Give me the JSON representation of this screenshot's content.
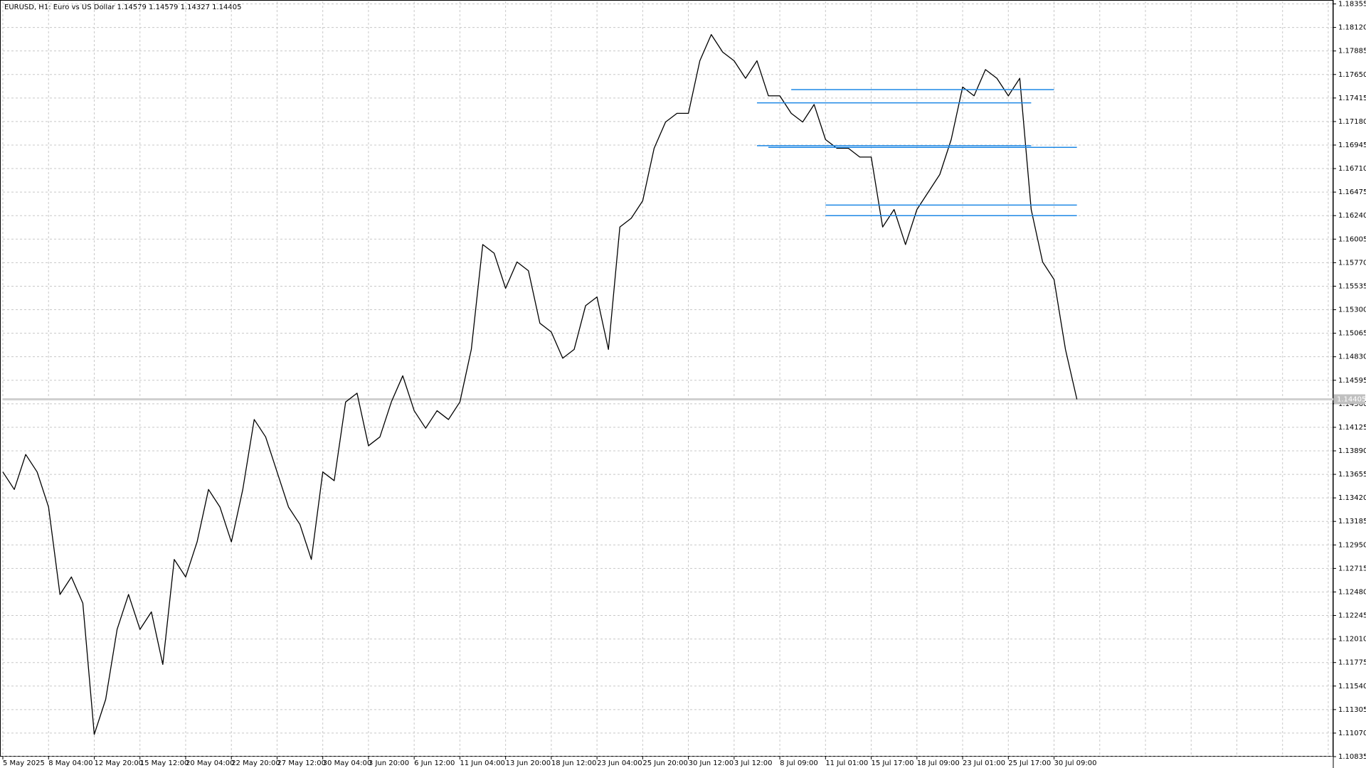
{
  "chart_data": {
    "type": "line",
    "title": "EURUSD, H1:  Euro vs US Dollar  1.14579 1.14579 1.14327 1.14405",
    "categories": [
      "5 May 2025",
      null,
      null,
      null,
      "8 May 04:00",
      null,
      null,
      null,
      "12 May 20:00",
      null,
      null,
      null,
      "15 May 12:00",
      null,
      null,
      null,
      "20 May 04:00",
      null,
      null,
      null,
      "22 May 20:00",
      null,
      null,
      null,
      "27 May 12:00",
      null,
      null,
      null,
      "30 May 04:00",
      null,
      null,
      null,
      "3 Jun 20:00",
      null,
      null,
      null,
      "6 Jun 12:00",
      null,
      null,
      null,
      "11 Jun 04:00",
      null,
      null,
      null,
      "13 Jun 20:00",
      null,
      null,
      null,
      "18 Jun 12:00",
      null,
      null,
      null,
      "23 Jun 04:00",
      null,
      null,
      null,
      "25 Jun 20:00",
      null,
      null,
      null,
      "30 Jun 12:00",
      null,
      null,
      null,
      "3 Jul 12:00",
      null,
      null,
      null,
      "8 Jul 09:00",
      null,
      null,
      null,
      "11 Jul 01:00",
      null,
      null,
      null,
      "15 Jul 17:00",
      null,
      null,
      null,
      "18 Jul 09:00",
      null,
      null,
      null,
      "23 Jul 01:00",
      null,
      null,
      null,
      "25 Jul 17:00",
      null,
      null,
      null,
      "30 Jul 09:00",
      null,
      null
    ],
    "values": [
      1.13679,
      1.13504,
      1.13854,
      1.13679,
      1.13329,
      1.12455,
      1.1263,
      1.12368,
      1.11057,
      1.11407,
      1.12106,
      1.12455,
      1.12106,
      1.12281,
      1.11756,
      1.12805,
      1.1263,
      1.1298,
      1.13504,
      1.13329,
      1.1298,
      1.13504,
      1.14203,
      1.14029,
      1.13679,
      1.13329,
      1.13155,
      1.12805,
      1.13679,
      1.13592,
      1.14378,
      1.14466,
      1.13941,
      1.14029,
      1.14378,
      1.1464,
      1.14291,
      1.14116,
      1.14291,
      1.14203,
      1.14378,
      1.14903,
      1.15951,
      1.15864,
      1.15514,
      1.15777,
      1.15689,
      1.15165,
      1.15077,
      1.14815,
      1.14903,
      1.1534,
      1.15427,
      1.14903,
      1.16126,
      1.16214,
      1.16388,
      1.16913,
      1.17175,
      1.17262,
      1.17262,
      1.17787,
      1.18049,
      1.17874,
      1.17787,
      1.17612,
      1.17787,
      1.17437,
      1.17437,
      1.17262,
      1.17175,
      1.1735,
      1.17,
      1.16913,
      1.16913,
      1.16825,
      1.16825,
      1.16126,
      1.16301,
      1.15951,
      1.16301,
      1.16476,
      1.16651,
      1.17,
      1.17525,
      1.17437,
      1.17699,
      1.17612,
      1.17437,
      1.17612,
      1.16301,
      1.15777,
      1.15602,
      1.14903,
      1.14405
    ],
    "color": "#000000",
    "ylim": [
      1.10835,
      1.1838
    ],
    "yticks": [
      1.18355,
      {
        "value": 1.1812,
        "label": "1.18120"
      },
      1.17885,
      {
        "value": 1.1765,
        "label": "1.17650"
      },
      1.17415,
      {
        "value": 1.1718,
        "label": "1.17180"
      },
      1.16945,
      {
        "value": 1.1671,
        "label": "1.16710"
      },
      1.16475,
      {
        "value": 1.1624,
        "label": "1.16240"
      },
      1.16005,
      {
        "value": 1.1577,
        "label": "1.15770"
      },
      1.15535,
      {
        "value": 1.153,
        "label": "1.15300"
      },
      1.15065,
      {
        "value": 1.1483,
        "label": "1.14830"
      },
      1.14595,
      {
        "value": 1.1436,
        "label": "1.14360"
      },
      1.14125,
      {
        "value": 1.1389,
        "label": "1.13890"
      },
      1.13655,
      {
        "value": 1.1342,
        "label": "1.13420"
      },
      1.13185,
      {
        "value": 1.1295,
        "label": "1.12950"
      },
      1.12715,
      {
        "value": 1.1248,
        "label": "1.12480"
      },
      1.12245,
      {
        "value": 1.1201,
        "label": "1.12010"
      },
      1.11775,
      {
        "value": 1.1154,
        "label": "1.11540"
      },
      1.11305,
      {
        "value": 1.1107,
        "label": "1.11070"
      },
      1.10835
    ],
    "grid": true,
    "last_price": 1.14405,
    "level_color": "#1e88e5",
    "levels": [
      {
        "value": 1.17499,
        "from": 69,
        "to": 92
      },
      {
        "value": 1.17367,
        "from": 66,
        "to": 90
      },
      {
        "value": 1.16939,
        "from": 66,
        "to": 90
      },
      {
        "value": 1.16922,
        "from": 67,
        "to": 94
      },
      {
        "value": 1.16345,
        "from": 72,
        "to": 94
      },
      {
        "value": 1.1624,
        "from": 72,
        "to": 94
      }
    ]
  }
}
